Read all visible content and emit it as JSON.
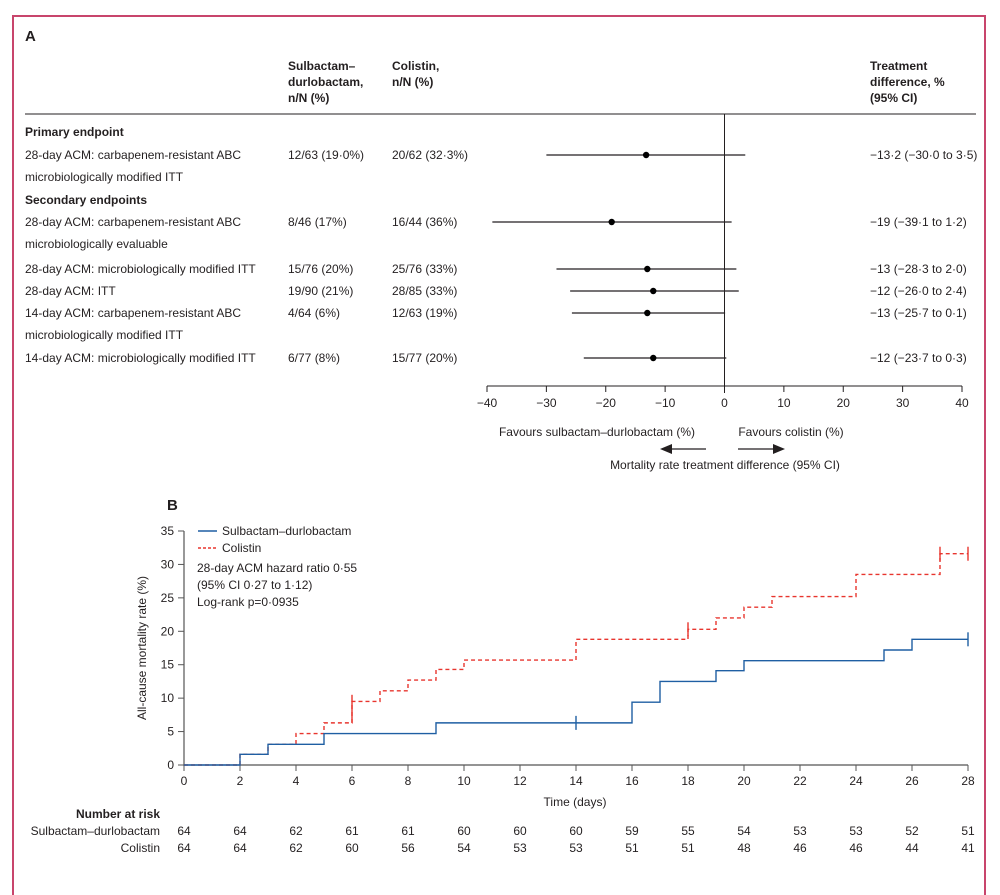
{
  "panel_a": {
    "label": "A",
    "headers": {
      "col1": [
        "Sulbactam–",
        "durlobactam,",
        "n/N (%)"
      ],
      "col2": [
        "Colistin,",
        "n/N (%)"
      ],
      "col3": [
        "Treatment",
        "difference, %",
        "(95% CI)"
      ]
    },
    "sections": [
      {
        "title": "Primary endpoint"
      },
      {
        "title": "Secondary endpoints"
      }
    ],
    "axis": {
      "ticks": [
        "−40",
        "−30",
        "−20",
        "−10",
        "0",
        "10",
        "20",
        "30",
        "40"
      ],
      "favours_left": "Favours sulbactam–durlobactam (%)",
      "favours_right": "Favours colistin (%)",
      "xlabel": "Mortality rate treatment difference (95% CI)"
    }
  },
  "panel_b": {
    "label": "B",
    "legend": [
      "Sulbactam–durlobactam",
      "Colistin"
    ],
    "annotation": [
      "28-day ACM hazard ratio 0·55",
      "(95% CI 0·27 to 1·12)",
      "Log-rank p=0·0935"
    ],
    "risk_table": {
      "title": "Number at risk",
      "rows": [
        {
          "name": "Sulbactam–durlobactam",
          "values": [
            "64",
            "64",
            "62",
            "61",
            "61",
            "60",
            "60",
            "60",
            "59",
            "55",
            "54",
            "53",
            "53",
            "52",
            "51"
          ]
        },
        {
          "name": "Colistin",
          "values": [
            "64",
            "64",
            "62",
            "60",
            "56",
            "54",
            "53",
            "53",
            "51",
            "51",
            "48",
            "46",
            "46",
            "44",
            "41"
          ]
        }
      ]
    }
  },
  "chart_data": [
    {
      "type": "scatter",
      "subtype": "forest",
      "title": "A",
      "xlabel": "Mortality rate treatment difference (95% CI)",
      "xlim": [
        -40,
        40
      ],
      "xticks": [
        -40,
        -30,
        -20,
        -10,
        0,
        10,
        20,
        30,
        40
      ],
      "rows": [
        {
          "section": "Primary endpoint",
          "label": [
            "28-day ACM: carbapenem-resistant ABC",
            "microbiologically modified ITT"
          ],
          "sd": "12/63 (19·0%)",
          "col": "20/62 (32·3%)",
          "estimate": -13.2,
          "lower": -30.0,
          "upper": 3.5,
          "text": "−13·2 (−30·0 to 3·5)"
        },
        {
          "section": "Secondary endpoints",
          "label": [
            "28-day ACM: carbapenem-resistant ABC",
            "microbiologically evaluable"
          ],
          "sd": "8/46 (17%)",
          "col": "16/44 (36%)",
          "estimate": -19,
          "lower": -39.1,
          "upper": 1.2,
          "text": "−19 (−39·1 to 1·2)"
        },
        {
          "section": "Secondary endpoints",
          "label": [
            "28-day ACM: microbiologically modified ITT"
          ],
          "sd": "15/76 (20%)",
          "col": "25/76 (33%)",
          "estimate": -13,
          "lower": -28.3,
          "upper": 2.0,
          "text": "−13 (−28·3 to 2·0)"
        },
        {
          "section": "Secondary endpoints",
          "label": [
            "28-day ACM: ITT"
          ],
          "sd": "19/90 (21%)",
          "col": "28/85 (33%)",
          "estimate": -12,
          "lower": -26.0,
          "upper": 2.4,
          "text": "−12 (−26·0 to 2·4)"
        },
        {
          "section": "Secondary endpoints",
          "label": [
            "14-day ACM: carbapenem-resistant ABC",
            "microbiologically modified ITT"
          ],
          "sd": "4/64 (6%)",
          "col": "12/63 (19%)",
          "estimate": -13,
          "lower": -25.7,
          "upper": 0.1,
          "text": "−13 (−25·7 to 0·1)"
        },
        {
          "section": "Secondary endpoints",
          "label": [
            "14-day ACM: microbiologically modified ITT"
          ],
          "sd": "6/77 (8%)",
          "col": "15/77 (20%)",
          "estimate": -12,
          "lower": -23.7,
          "upper": 0.3,
          "text": "−12 (−23·7 to 0·3)"
        }
      ]
    },
    {
      "type": "line",
      "subtype": "step",
      "title": "B",
      "xlabel": "Time (days)",
      "ylabel": "All-cause mortality rate (%)",
      "xlim": [
        0,
        28
      ],
      "ylim": [
        0,
        35
      ],
      "xticks": [
        0,
        2,
        4,
        6,
        8,
        10,
        12,
        14,
        16,
        18,
        20,
        22,
        24,
        26,
        28
      ],
      "yticks": [
        0,
        5,
        10,
        15,
        20,
        25,
        30,
        35
      ],
      "legend": "top-left",
      "series": [
        {
          "name": "Sulbactam–durlobactam",
          "color": "#1f5fa3",
          "style": "solid",
          "x": [
            0,
            2,
            3,
            5,
            9,
            16,
            17,
            19,
            20,
            25,
            26,
            28
          ],
          "y": [
            0,
            1.6,
            3.1,
            4.7,
            6.3,
            9.4,
            12.5,
            14.1,
            15.6,
            17.2,
            18.8,
            18.8
          ],
          "censored_x": [
            14,
            28
          ]
        },
        {
          "name": "Colistin",
          "color": "#e8352e",
          "style": "dashed",
          "x": [
            0,
            2,
            3,
            4,
            5,
            6,
            7,
            8,
            9,
            10,
            14,
            18,
            19,
            20,
            21,
            24,
            27,
            28
          ],
          "y": [
            0,
            1.6,
            3.1,
            4.7,
            6.3,
            9.5,
            11.1,
            12.7,
            14.3,
            15.7,
            18.8,
            20.3,
            22.0,
            23.6,
            25.2,
            28.5,
            31.6,
            31.6
          ],
          "censored_x": [
            6,
            18,
            27,
            28
          ]
        }
      ]
    }
  ]
}
